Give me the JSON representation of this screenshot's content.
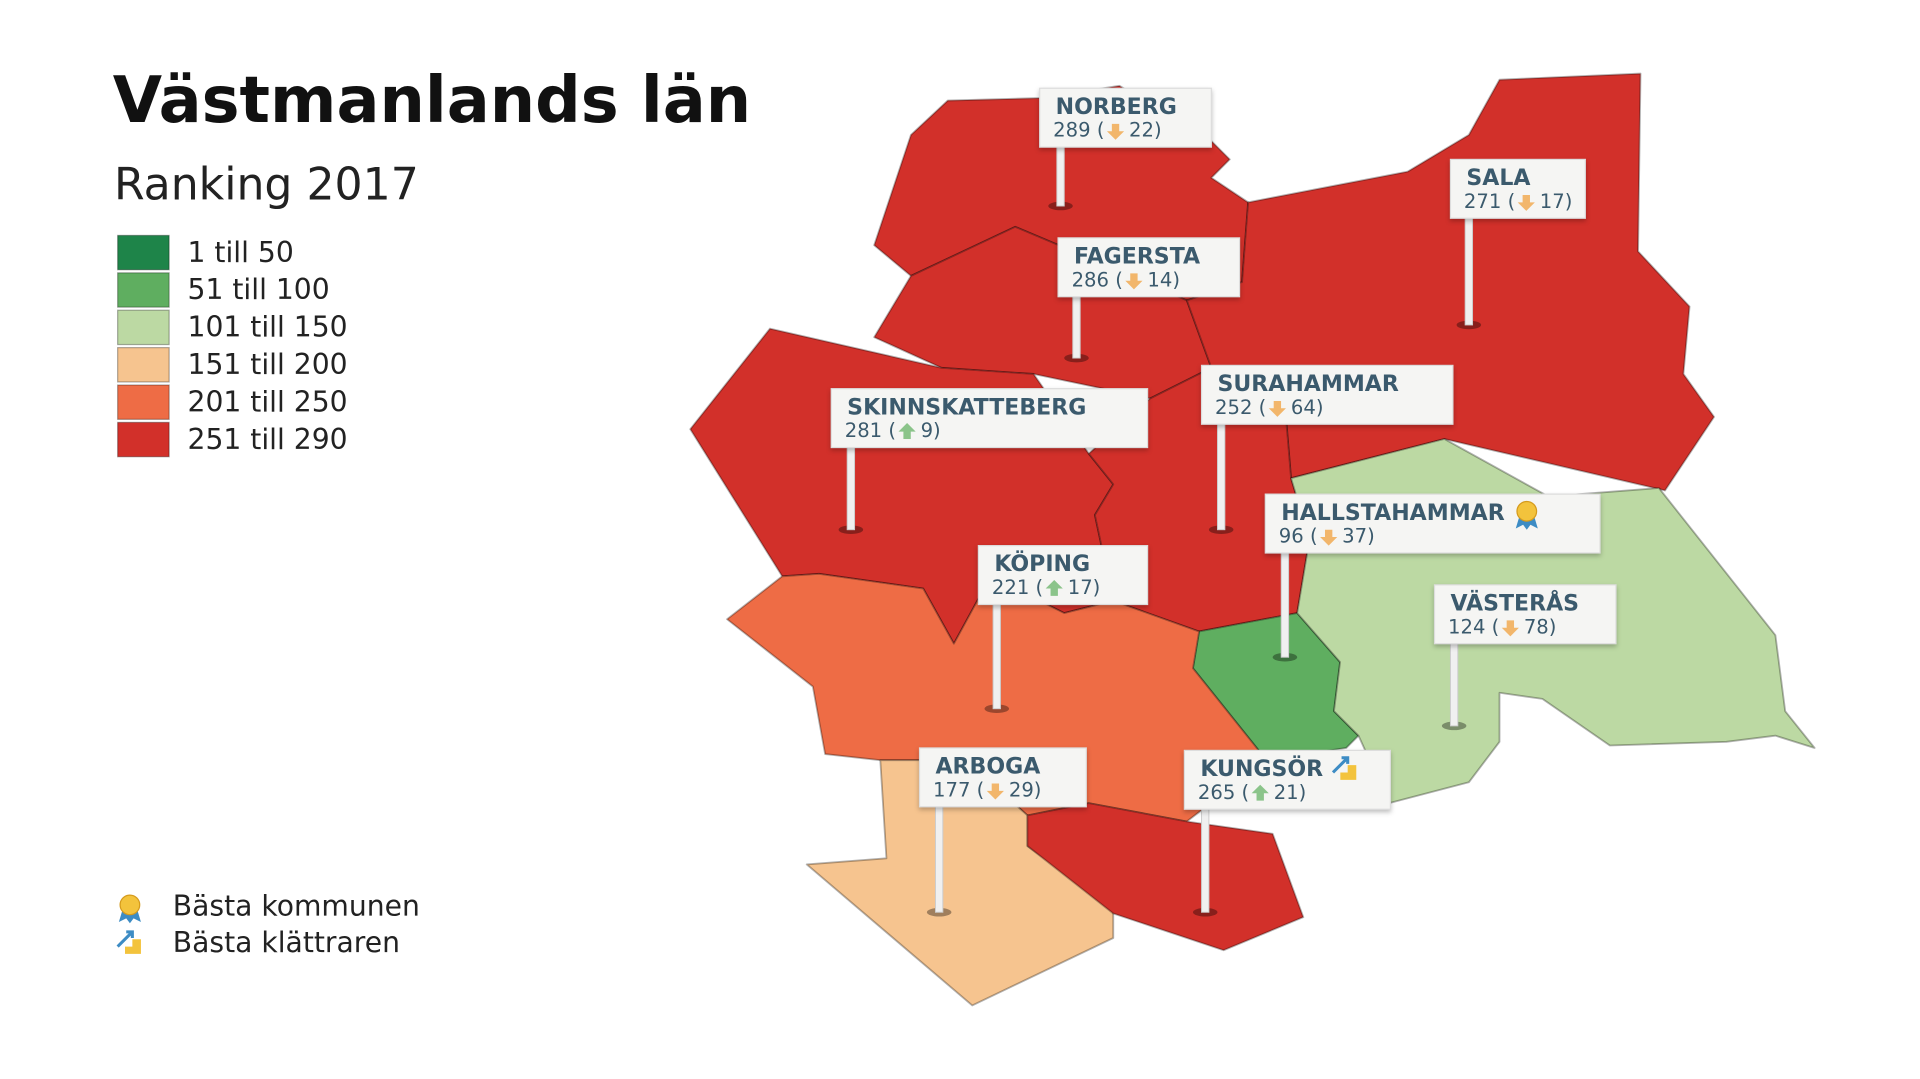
{
  "header": {
    "title": "Västmanlands län",
    "subtitle": "Ranking 2017"
  },
  "legend": [
    {
      "label": "1 till 50",
      "color": "#1e8449"
    },
    {
      "label": "51 till 100",
      "color": "#5fae60"
    },
    {
      "label": "101 till 150",
      "color": "#bcd9a3"
    },
    {
      "label": "151 till 200",
      "color": "#f6c48f"
    },
    {
      "label": "201 till 250",
      "color": "#ee6c45"
    },
    {
      "label": "251 till 290",
      "color": "#d2302a"
    }
  ],
  "municipalities": [
    {
      "name": "NORBERG",
      "rank_label": "289 (",
      "change": "down",
      "change_label": "22)",
      "color": "#d2302a"
    },
    {
      "name": "FAGERSTA",
      "rank_label": "286 (",
      "change": "down",
      "change_label": "14)",
      "color": "#d2302a"
    },
    {
      "name": "SALA",
      "rank_label": "271 (",
      "change": "down",
      "change_label": "17)",
      "color": "#d2302a"
    },
    {
      "name": "SKINNSKATTEBERG",
      "rank_label": "281 (",
      "change": "up",
      "change_label": "9)",
      "color": "#d2302a"
    },
    {
      "name": "SURAHAMMAR",
      "rank_label": "252 (",
      "change": "down",
      "change_label": "64)",
      "color": "#d2302a"
    },
    {
      "name": "HALLSTAHAMMAR",
      "rank_label": "96 (",
      "change": "down",
      "change_label": "37)",
      "color": "#5fae60",
      "badge": "best"
    },
    {
      "name": "VÄSTERÅS",
      "rank_label": "124 (",
      "change": "down",
      "change_label": "78)",
      "color": "#bcd9a3"
    },
    {
      "name": "KÖPING",
      "rank_label": "221 (",
      "change": "up",
      "change_label": "17)",
      "color": "#ee6c45"
    },
    {
      "name": "ARBOGA",
      "rank_label": "177 (",
      "change": "down",
      "change_label": "29)",
      "color": "#f6c48f"
    },
    {
      "name": "KUNGSÖR",
      "rank_label": "265 (",
      "change": "up",
      "change_label": "21)",
      "color": "#d2302a",
      "badge": "climber"
    }
  ],
  "badges": [
    {
      "type": "best",
      "label": "Bästa kommunen"
    },
    {
      "type": "climber",
      "label": "Bästa klättraren"
    }
  ]
}
